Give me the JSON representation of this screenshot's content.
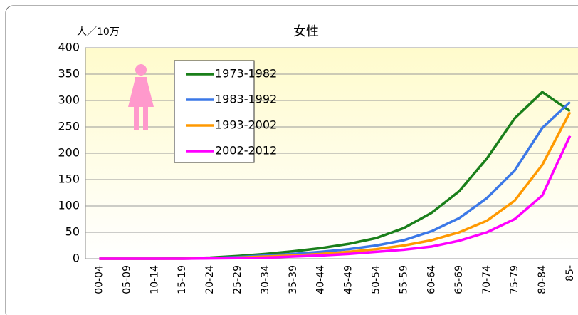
{
  "chart_data": {
    "type": "line",
    "title": "女性",
    "y_label": "人／10万",
    "categories": [
      "00-04",
      "05-09",
      "10-14",
      "15-19",
      "20-24",
      "25-29",
      "30-34",
      "35-39",
      "40-44",
      "45-49",
      "50-54",
      "55-59",
      "60-64",
      "65-69",
      "70-74",
      "75-79",
      "80-84",
      "85-"
    ],
    "series": [
      {
        "name": "1973-1982",
        "color": "#1a7f1a",
        "values": [
          0,
          0,
          0,
          0.5,
          2,
          5,
          9,
          14,
          20,
          28,
          39,
          58,
          87,
          128,
          190,
          266,
          316,
          280
        ]
      },
      {
        "name": "1983-1992",
        "color": "#3b78e7",
        "values": [
          0,
          0,
          0,
          0,
          1,
          3,
          6,
          9,
          13,
          18,
          25,
          35,
          52,
          77,
          115,
          167,
          248,
          297
        ]
      },
      {
        "name": "1993-2002",
        "color": "#ff9900",
        "values": [
          0,
          0,
          0,
          0,
          1,
          2,
          4,
          6,
          9,
          13,
          18,
          25,
          35,
          50,
          72,
          110,
          178,
          278
        ]
      },
      {
        "name": "2002-2012",
        "color": "#ff00ff",
        "values": [
          0,
          0,
          0,
          0,
          0.5,
          1,
          2,
          4,
          6,
          9,
          13,
          17,
          23,
          34,
          50,
          75,
          120,
          233
        ]
      }
    ],
    "ylim": [
      0,
      400
    ],
    "yticks": [
      0,
      50,
      100,
      150,
      200,
      250,
      300,
      350,
      400
    ],
    "grid": true
  }
}
